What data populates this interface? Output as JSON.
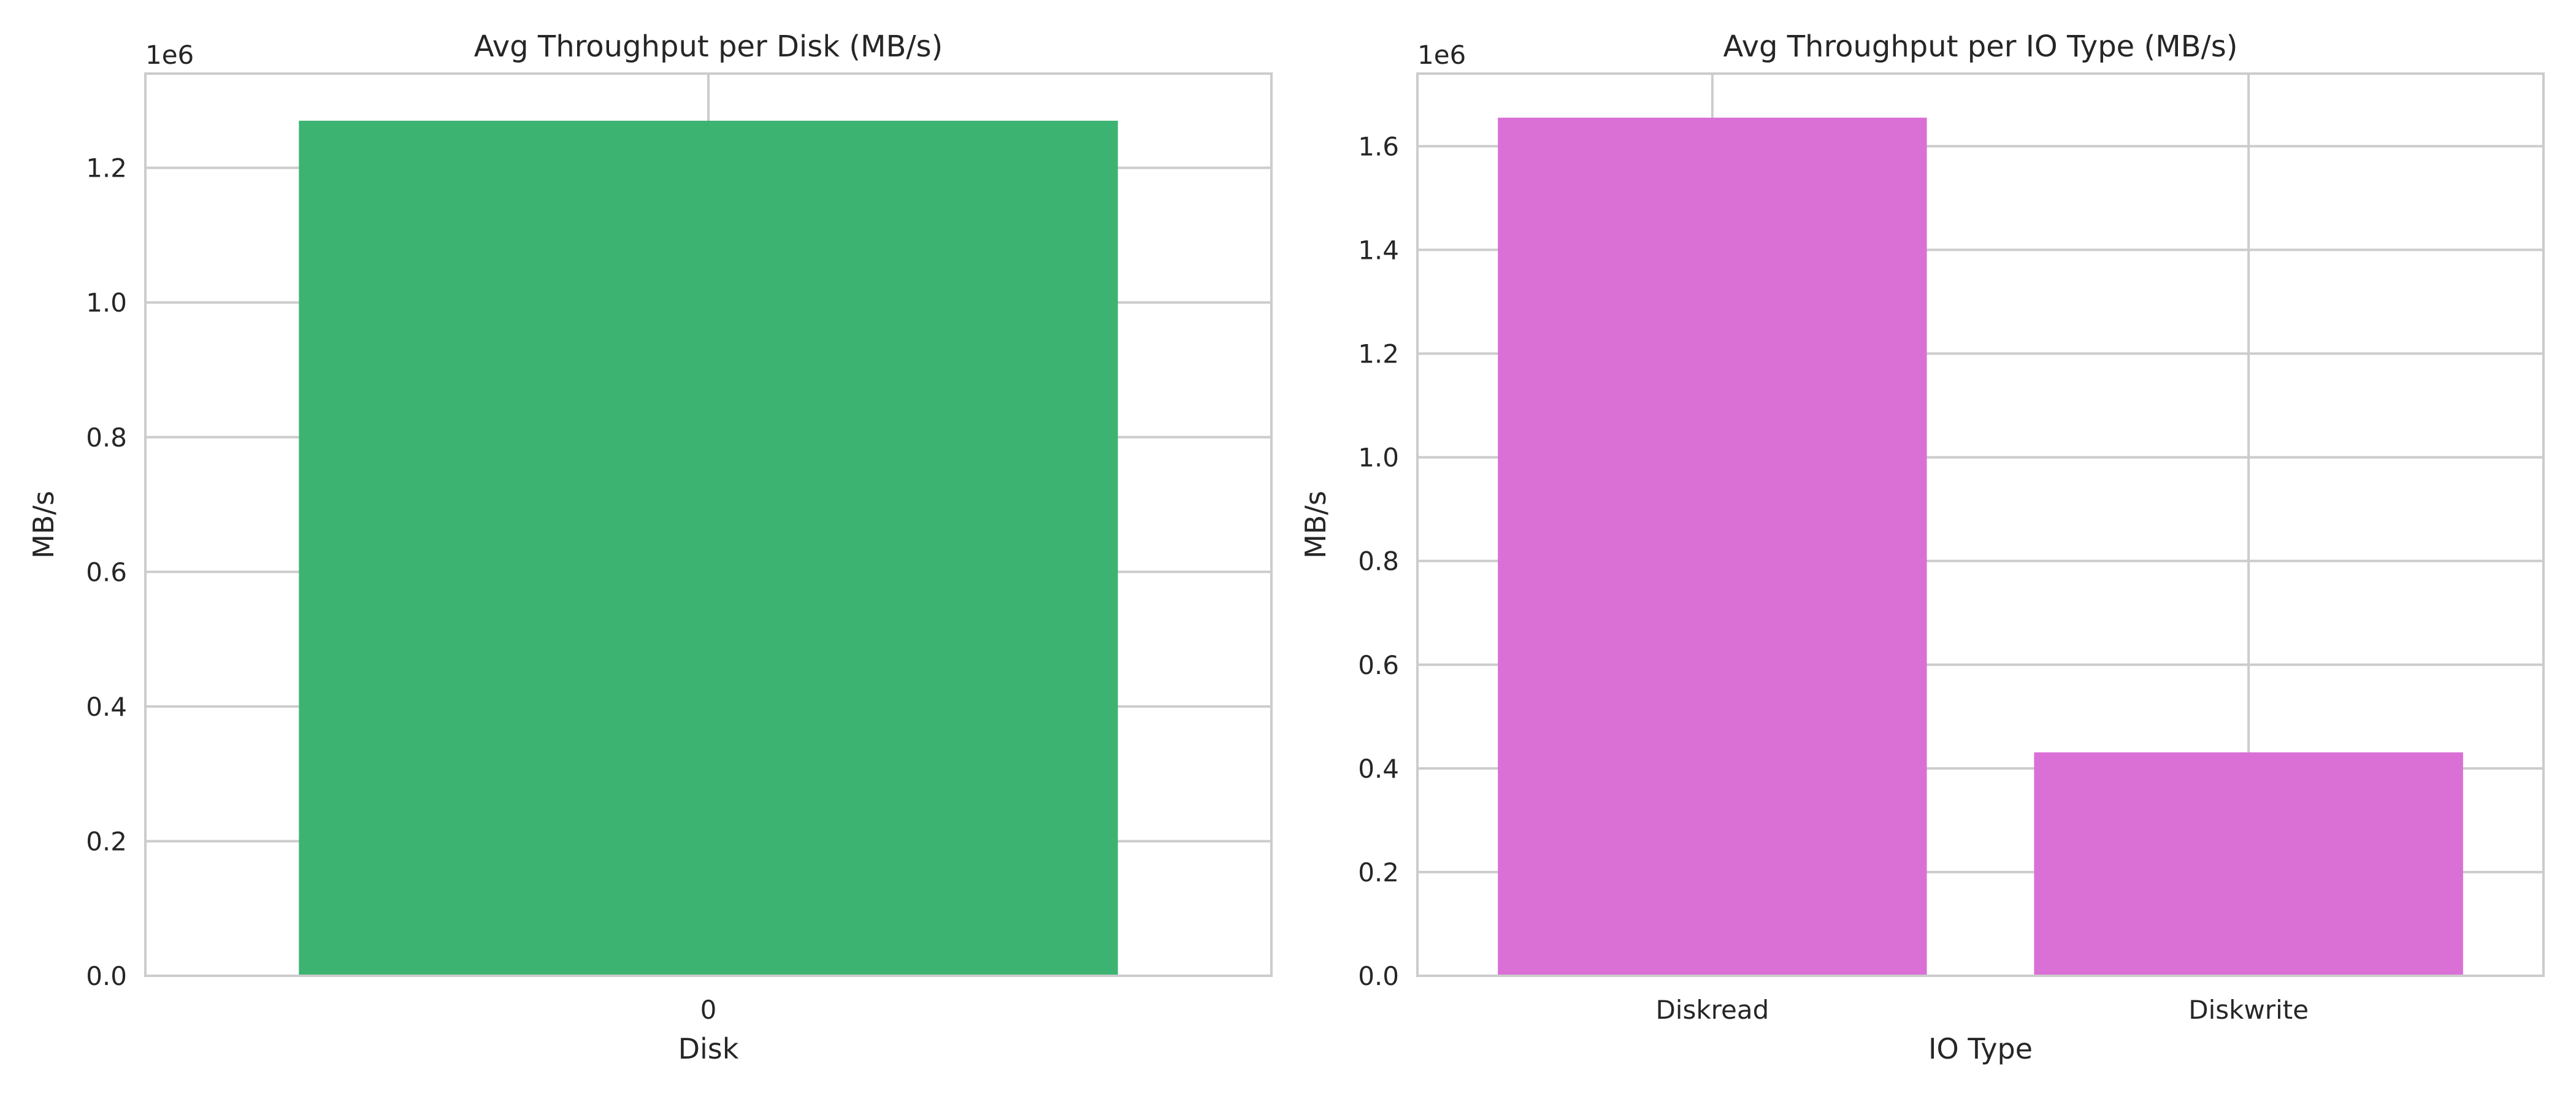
{
  "chart_data": [
    {
      "type": "bar",
      "title": "Avg Throughput per Disk (MB/s)",
      "xlabel": "Disk",
      "ylabel": "MB/s",
      "offset_label": "1e6",
      "categories": [
        "0"
      ],
      "values": [
        1270000
      ],
      "ylim": [
        0,
        1340000
      ],
      "yticks": [
        0,
        200000,
        400000,
        600000,
        800000,
        1000000,
        1200000
      ],
      "ytick_labels": [
        "0.0",
        "0.2",
        "0.4",
        "0.6",
        "0.8",
        "1.0",
        "1.2"
      ],
      "bar_color": "#3cb371",
      "grid": true
    },
    {
      "type": "bar",
      "title": "Avg Throughput per IO Type (MB/s)",
      "xlabel": "IO Type",
      "ylabel": "MB/s",
      "offset_label": "1e6",
      "categories": [
        "Diskread",
        "Diskwrite"
      ],
      "values": [
        1655000,
        431000
      ],
      "ylim": [
        0,
        1740000
      ],
      "yticks": [
        0,
        200000,
        400000,
        600000,
        800000,
        1000000,
        1200000,
        1400000,
        1600000
      ],
      "ytick_labels": [
        "0.0",
        "0.2",
        "0.4",
        "0.6",
        "0.8",
        "1.0",
        "1.2",
        "1.4",
        "1.6"
      ],
      "bar_color": "#da70d6",
      "grid": true
    }
  ]
}
